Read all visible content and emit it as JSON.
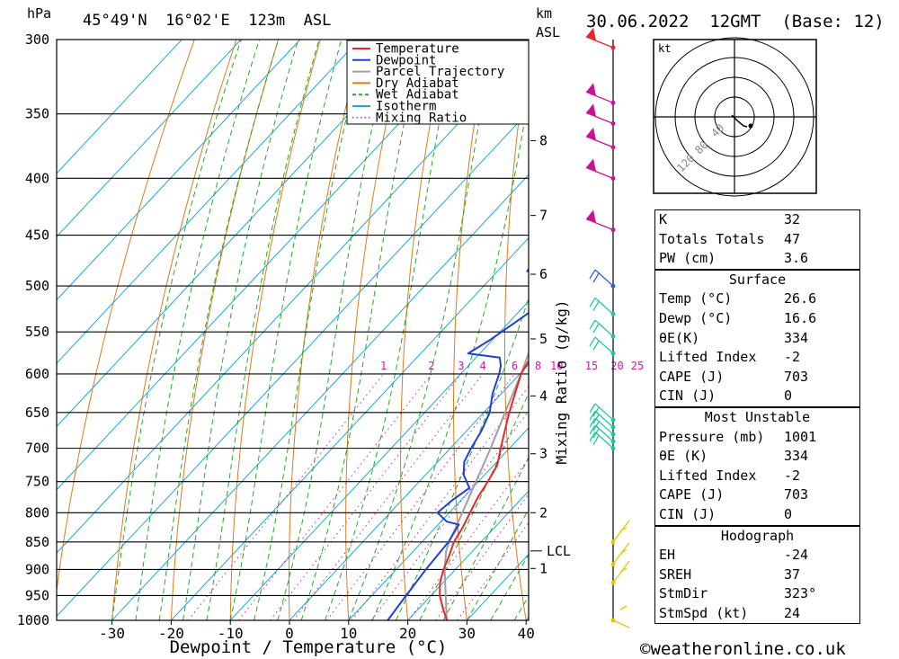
{
  "header": {
    "left_unit": "hPa",
    "location": "45°49'N  16°02'E  123m  ASL",
    "km_unit": "km",
    "asl_unit": "ASL",
    "datetime": "30.06.2022  12GMT  (Base: 12)"
  },
  "footer": {
    "credit": "©weatheronline.co.uk"
  },
  "chart_data": {
    "type": "line",
    "xlabel": "Dewpoint / Temperature (°C)",
    "ylabel": "hPa",
    "mixing_ratio_label": "Mixing Ratio (g/kg)",
    "xlim": [
      -40,
      40
    ],
    "ylim": [
      1000,
      300
    ],
    "x_ticks": [
      -30,
      -20,
      -10,
      0,
      10,
      20,
      30,
      40
    ],
    "pressure_ticks": [
      300,
      350,
      400,
      450,
      500,
      550,
      600,
      650,
      700,
      750,
      800,
      850,
      900,
      950,
      1000
    ],
    "km_ticks": [
      {
        "label": "8",
        "p": 370
      },
      {
        "label": "7",
        "p": 432
      },
      {
        "label": "6",
        "p": 488
      },
      {
        "label": "5",
        "p": 558
      },
      {
        "label": "4",
        "p": 628
      },
      {
        "label": "3",
        "p": 708
      },
      {
        "label": "2",
        "p": 800
      },
      {
        "label": "1",
        "p": 898
      }
    ],
    "lcl": {
      "label": "LCL",
      "p": 866
    },
    "mixing_ratio_values": [
      "1",
      "2",
      "3",
      "4",
      "6",
      "8",
      "10",
      "15",
      "20",
      "25"
    ],
    "legend": [
      {
        "name": "Temperature",
        "color": "#e8262b",
        "style": "solid"
      },
      {
        "name": "Dewpoint",
        "color": "#1f3fd8",
        "style": "solid"
      },
      {
        "name": "Parcel Trajectory",
        "color": "#a0a0a0",
        "style": "solid"
      },
      {
        "name": "Dry Adiabat",
        "color": "#e07a1a",
        "style": "solid"
      },
      {
        "name": "Wet Adiabat",
        "color": "#22aa22",
        "style": "dashed"
      },
      {
        "name": "Isotherm",
        "color": "#1aa8e0",
        "style": "solid"
      },
      {
        "name": "Mixing Ratio",
        "color": "#cc2299",
        "style": "dotted"
      }
    ],
    "series": [
      {
        "name": "Temperature",
        "color": "#e8262b",
        "points": [
          {
            "p": 1000,
            "t": 26.6
          },
          {
            "p": 975,
            "t": 24.0
          },
          {
            "p": 950,
            "t": 21.5
          },
          {
            "p": 925,
            "t": 19.5
          },
          {
            "p": 900,
            "t": 18.0
          },
          {
            "p": 875,
            "t": 16.8
          },
          {
            "p": 850,
            "t": 15.4
          },
          {
            "p": 825,
            "t": 14.6
          },
          {
            "p": 800,
            "t": 13.5
          },
          {
            "p": 775,
            "t": 12.4
          },
          {
            "p": 750,
            "t": 11.6
          },
          {
            "p": 725,
            "t": 10.6
          },
          {
            "p": 700,
            "t": 8.5
          },
          {
            "p": 650,
            "t": 4.3
          },
          {
            "p": 600,
            "t": 0.2
          },
          {
            "p": 575,
            "t": -1.0
          },
          {
            "p": 550,
            "t": -3.5
          },
          {
            "p": 525,
            "t": -6.0
          },
          {
            "p": 500,
            "t": -7.5
          },
          {
            "p": 475,
            "t": -10.5
          },
          {
            "p": 450,
            "t": -13.0
          },
          {
            "p": 425,
            "t": -16.5
          },
          {
            "p": 400,
            "t": -21.0
          },
          {
            "p": 375,
            "t": -25.5
          },
          {
            "p": 350,
            "t": -30.0
          },
          {
            "p": 340,
            "t": -32.0
          },
          {
            "p": 330,
            "t": -32.0
          },
          {
            "p": 320,
            "t": -33.5
          },
          {
            "p": 310,
            "t": -35.5
          },
          {
            "p": 300,
            "t": -37.5
          }
        ]
      },
      {
        "name": "Dewpoint",
        "color": "#1f3fd8",
        "points": [
          {
            "p": 1000,
            "t": 16.6
          },
          {
            "p": 950,
            "t": 15.8
          },
          {
            "p": 900,
            "t": 15.0
          },
          {
            "p": 850,
            "t": 14.5
          },
          {
            "p": 820,
            "t": 13.5
          },
          {
            "p": 815,
            "t": 11.0
          },
          {
            "p": 800,
            "t": 8.0
          },
          {
            "p": 780,
            "t": 8.5
          },
          {
            "p": 760,
            "t": 9.5
          },
          {
            "p": 740,
            "t": 6.5
          },
          {
            "p": 720,
            "t": 4.5
          },
          {
            "p": 700,
            "t": 3.5
          },
          {
            "p": 675,
            "t": 2.5
          },
          {
            "p": 650,
            "t": 1.0
          },
          {
            "p": 625,
            "t": -1.5
          },
          {
            "p": 600,
            "t": -3.5
          },
          {
            "p": 590,
            "t": -4.5
          },
          {
            "p": 580,
            "t": -6.0
          },
          {
            "p": 575,
            "t": -12.0
          },
          {
            "p": 560,
            "t": -10.5
          },
          {
            "p": 540,
            "t": -9.0
          },
          {
            "p": 520,
            "t": -7.5
          },
          {
            "p": 500,
            "t": -8.5
          },
          {
            "p": 490,
            "t": -9.0
          },
          {
            "p": 485,
            "t": -15.0
          },
          {
            "p": 470,
            "t": -15.5
          },
          {
            "p": 455,
            "t": -16.5
          },
          {
            "p": 445,
            "t": -21.0
          },
          {
            "p": 440,
            "t": -18.5
          },
          {
            "p": 420,
            "t": -19.0
          },
          {
            "p": 400,
            "t": -20.5
          },
          {
            "p": 375,
            "t": -21.5
          },
          {
            "p": 360,
            "t": -25.0
          },
          {
            "p": 345,
            "t": -30.0
          },
          {
            "p": 335,
            "t": -34.0
          },
          {
            "p": 330,
            "t": -40.0
          },
          {
            "p": 325,
            "t": -47.0
          },
          {
            "p": 300,
            "t": -48.0
          }
        ]
      },
      {
        "name": "Parcel Trajectory",
        "color": "#a0a0a0",
        "points": [
          {
            "p": 1000,
            "t": 26.6
          },
          {
            "p": 950,
            "t": 22.5
          },
          {
            "p": 900,
            "t": 18.2
          },
          {
            "p": 866,
            "t": 15.5
          },
          {
            "p": 850,
            "t": 14.6
          },
          {
            "p": 800,
            "t": 12.2
          },
          {
            "p": 750,
            "t": 9.6
          },
          {
            "p": 700,
            "t": 6.8
          },
          {
            "p": 650,
            "t": 3.6
          },
          {
            "p": 600,
            "t": 0.2
          },
          {
            "p": 550,
            "t": -3.8
          },
          {
            "p": 500,
            "t": -8.5
          },
          {
            "p": 450,
            "t": -14.0
          },
          {
            "p": 400,
            "t": -20.5
          },
          {
            "p": 350,
            "t": -28.5
          },
          {
            "p": 300,
            "t": -38.0
          }
        ]
      }
    ],
    "wind_barbs": [
      {
        "p": 1000,
        "color": "#e6c800"
      },
      {
        "p": 925,
        "color": "#e6c800"
      },
      {
        "p": 890,
        "color": "#e6c800"
      },
      {
        "p": 850,
        "color": "#e6c800"
      },
      {
        "p": 700,
        "color": "#1ec8a0"
      },
      {
        "p": 690,
        "color": "#1ec8a0"
      },
      {
        "p": 680,
        "color": "#1ec8a0"
      },
      {
        "p": 670,
        "color": "#1ec8a0"
      },
      {
        "p": 660,
        "color": "#1ec8a0"
      },
      {
        "p": 575,
        "color": "#1ec8a0"
      },
      {
        "p": 555,
        "color": "#1ec8a0"
      },
      {
        "p": 530,
        "color": "#1ec8a0"
      },
      {
        "p": 500,
        "color": "#2a5fe0"
      },
      {
        "p": 445,
        "color": "#cc1199"
      },
      {
        "p": 400,
        "color": "#cc1199"
      },
      {
        "p": 375,
        "color": "#cc1199"
      },
      {
        "p": 357,
        "color": "#cc1199"
      },
      {
        "p": 342,
        "color": "#cc1199"
      },
      {
        "p": 305,
        "color": "#e8262b"
      }
    ]
  },
  "hodograph": {
    "unit_label": "kt",
    "ring_labels": [
      "40",
      "80",
      "120"
    ]
  },
  "indices": {
    "general": [
      {
        "label": "K",
        "value": "32"
      },
      {
        "label": "Totals Totals",
        "value": "47"
      },
      {
        "label": "PW (cm)",
        "value": "3.6"
      }
    ],
    "surface": {
      "title": "Surface",
      "rows": [
        {
          "label": "Temp (°C)",
          "value": "26.6"
        },
        {
          "label": "Dewp (°C)",
          "value": "16.6"
        },
        {
          "label": "θE(K)",
          "value": "334"
        },
        {
          "label": "Lifted Index",
          "value": "-2"
        },
        {
          "label": "CAPE (J)",
          "value": "703"
        },
        {
          "label": "CIN (J)",
          "value": "0"
        }
      ]
    },
    "most_unstable": {
      "title": "Most Unstable",
      "rows": [
        {
          "label": "Pressure (mb)",
          "value": "1001"
        },
        {
          "label": "θE (K)",
          "value": "334"
        },
        {
          "label": "Lifted Index",
          "value": "-2"
        },
        {
          "label": "CAPE (J)",
          "value": "703"
        },
        {
          "label": "CIN (J)",
          "value": "0"
        }
      ]
    },
    "hodograph": {
      "title": "Hodograph",
      "rows": [
        {
          "label": "EH",
          "value": "-24"
        },
        {
          "label": "SREH",
          "value": "37"
        },
        {
          "label": "StmDir",
          "value": "323°"
        },
        {
          "label": "StmSpd (kt)",
          "value": "24"
        }
      ]
    }
  }
}
